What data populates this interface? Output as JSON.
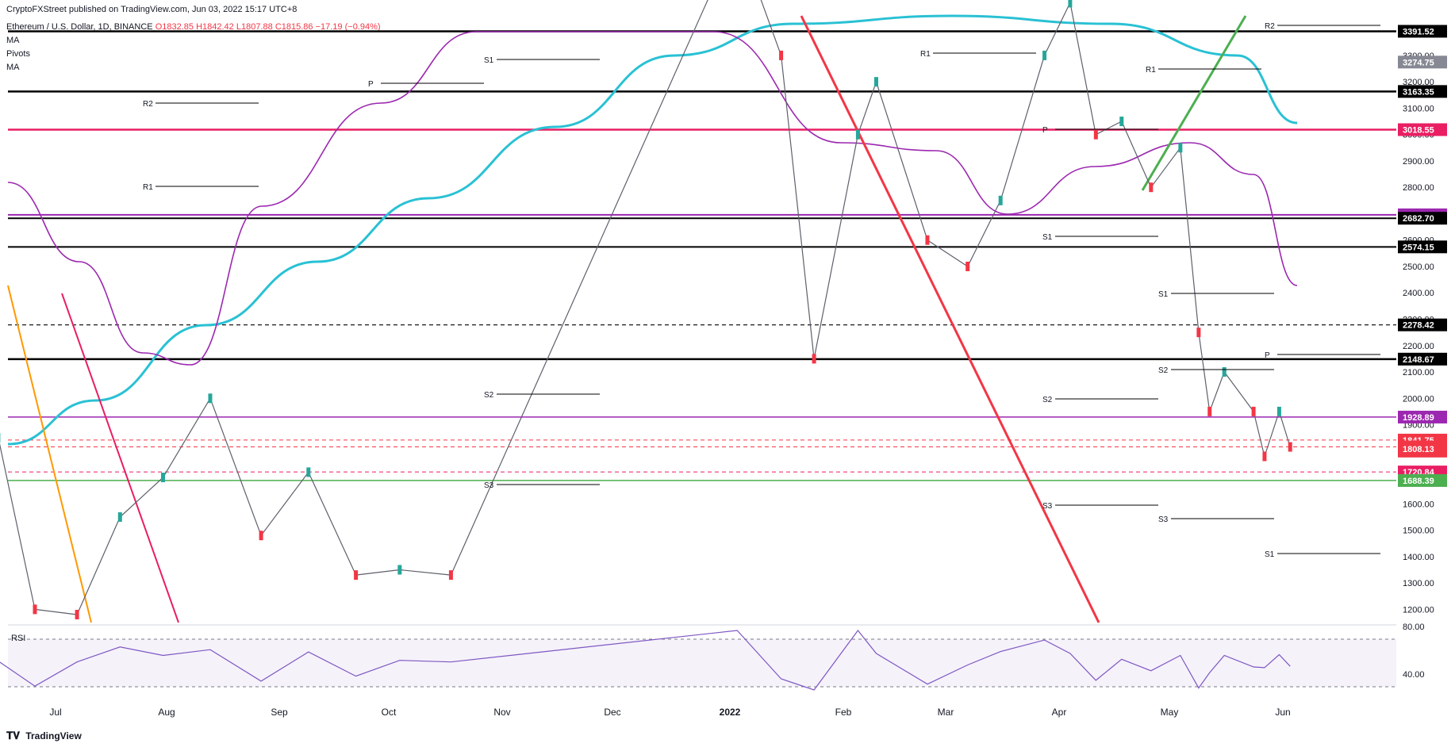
{
  "publisher_line": "CryptoFXStreet published on TradingView.com, Jun 03, 2022 15:17 UTC+8",
  "symbol_line": "Ethereum / U.S. Dollar, 1D, BINANCE",
  "ohlc": {
    "open": "O1832.85",
    "high": "H1842.42",
    "low": "L1807.88",
    "close": "C1815.86",
    "change": "−17.19 (−0.94%)"
  },
  "indicators": [
    "MA",
    "Pivots",
    "MA"
  ],
  "currency": "USD",
  "rsi_label": "RSI",
  "brand": "TradingView",
  "colors": {
    "up": "#26a69a",
    "down": "#f23645",
    "ma_cyan": "#29c1d4",
    "ma_purple": "#9c27b0",
    "magenta": "#e91e63",
    "green": "#4caf50",
    "orange": "#ff9800"
  },
  "chart_data": {
    "type": "line",
    "title": "Ethereum / U.S. Dollar, 1D, BINANCE",
    "ylim": [
      1150,
      3450
    ],
    "y_ticks": [
      1200,
      1300,
      1400,
      1500,
      1600,
      1700,
      1800,
      1900,
      2000,
      2100,
      2200,
      2300,
      2400,
      2500,
      2600,
      2700,
      2800,
      2900,
      3000,
      3100,
      3200,
      3300
    ],
    "x_ticks": [
      "Jul",
      "Aug",
      "Sep",
      "Oct",
      "Nov",
      "Dec",
      "2022",
      "Feb",
      "Mar",
      "Apr",
      "May",
      "Jun"
    ],
    "series": [
      {
        "name": "ETHUSD close",
        "values": [
          [
            "2022-06-15",
            1850
          ],
          [
            "2022-06-25",
            1200
          ],
          [
            "2022-07-07",
            1180
          ],
          [
            "2022-07-19",
            1550
          ],
          [
            "2022-07-31",
            1700
          ],
          [
            "2022-08-13",
            2000
          ],
          [
            "2022-08-27",
            1480
          ],
          [
            "2022-09-09",
            1720
          ],
          [
            "2022-09-22",
            1330
          ],
          [
            "2022-10-04",
            1350
          ],
          [
            "2022-10-18",
            1330
          ],
          [
            "2022-01-03",
            3760
          ],
          [
            "2022-01-15",
            3300
          ],
          [
            "2022-01-24",
            2150
          ],
          [
            "2022-02-05",
            3000
          ],
          [
            "2022-02-10",
            3200
          ],
          [
            "2022-02-24",
            2600
          ],
          [
            "2022-03-07",
            2500
          ],
          [
            "2022-03-16",
            2750
          ],
          [
            "2022-03-28",
            3300
          ],
          [
            "2022-04-04",
            3500
          ],
          [
            "2022-04-11",
            3000
          ],
          [
            "2022-04-18",
            3050
          ],
          [
            "2022-04-26",
            2800
          ],
          [
            "2022-05-04",
            2950
          ],
          [
            "2022-05-09",
            2250
          ],
          [
            "2022-05-12",
            1950
          ],
          [
            "2022-05-16",
            2100
          ],
          [
            "2022-05-24",
            1950
          ],
          [
            "2022-05-27",
            1780
          ],
          [
            "2022-05-31",
            1950
          ],
          [
            "2022-06-03",
            1815.86
          ]
        ]
      }
    ],
    "price_labels": [
      {
        "value": 3391.52,
        "text": "3391.52",
        "bg": "#000000"
      },
      {
        "value": 3274.75,
        "text": "3274.75",
        "bg": "#868993"
      },
      {
        "value": 3163.35,
        "text": "3163.35",
        "bg": "#000000"
      },
      {
        "value": 3018.55,
        "text": "3018.55",
        "bg": "#e91e63"
      },
      {
        "value": 2695.79,
        "text": "2695.79",
        "bg": "#9c27b0"
      },
      {
        "value": 2682.7,
        "text": "2682.70",
        "bg": "#000000"
      },
      {
        "value": 2574.15,
        "text": "2574.15",
        "bg": "#000000"
      },
      {
        "value": 2278.42,
        "text": "2278.42",
        "bg": "#000000"
      },
      {
        "value": 2148.67,
        "text": "2148.67",
        "bg": "#000000"
      },
      {
        "value": 1928.89,
        "text": "1928.89",
        "bg": "#9c27b0"
      },
      {
        "value": 1841.75,
        "text": "1841.75",
        "bg": "#f23645"
      },
      {
        "value": 1815.86,
        "text": "1815.86",
        "bg": "#f23645"
      },
      {
        "value": 1800,
        "text": "16:42:41",
        "bg": "#f23645"
      },
      {
        "value": 1808.13,
        "text": "1808.13",
        "bg": "#f23645"
      },
      {
        "value": 1720.84,
        "text": "1720.84",
        "bg": "#e91e63"
      },
      {
        "value": 1688.39,
        "text": "1688.39",
        "bg": "#4caf50"
      }
    ],
    "horizontal_levels": [
      {
        "value": 3391.52,
        "color": "#000000",
        "style": "solid",
        "width": 2.5
      },
      {
        "value": 3163.35,
        "color": "#000000",
        "style": "solid",
        "width": 2.5
      },
      {
        "value": 3018.55,
        "color": "#e91e63",
        "style": "solid",
        "width": 2.5
      },
      {
        "value": 2695.79,
        "color": "#9c27b0",
        "style": "solid",
        "width": 2
      },
      {
        "value": 2682.7,
        "color": "#000000",
        "style": "solid",
        "width": 2
      },
      {
        "value": 2574.15,
        "color": "#000000",
        "style": "solid",
        "width": 2
      },
      {
        "value": 2278.42,
        "color": "#000000",
        "style": "dashed",
        "width": 1.2
      },
      {
        "value": 2148.67,
        "color": "#000000",
        "style": "solid",
        "width": 2.5
      },
      {
        "value": 1928.89,
        "color": "#9c27b0",
        "style": "solid",
        "width": 1.5
      },
      {
        "value": 1841.75,
        "color": "#f23645",
        "style": "dashed",
        "width": 1
      },
      {
        "value": 1815.86,
        "color": "#f23645",
        "style": "dashed",
        "width": 1
      },
      {
        "value": 1720.84,
        "color": "#e91e63",
        "style": "dashed",
        "width": 1
      },
      {
        "value": 1688.39,
        "color": "#4caf50",
        "style": "solid",
        "width": 1.5
      }
    ],
    "pivot_labels": [
      "R2",
      "R1",
      "P",
      "S1",
      "S2",
      "S3"
    ],
    "rsi_ticks": [
      "80.00",
      "40.00"
    ],
    "grid": false
  }
}
